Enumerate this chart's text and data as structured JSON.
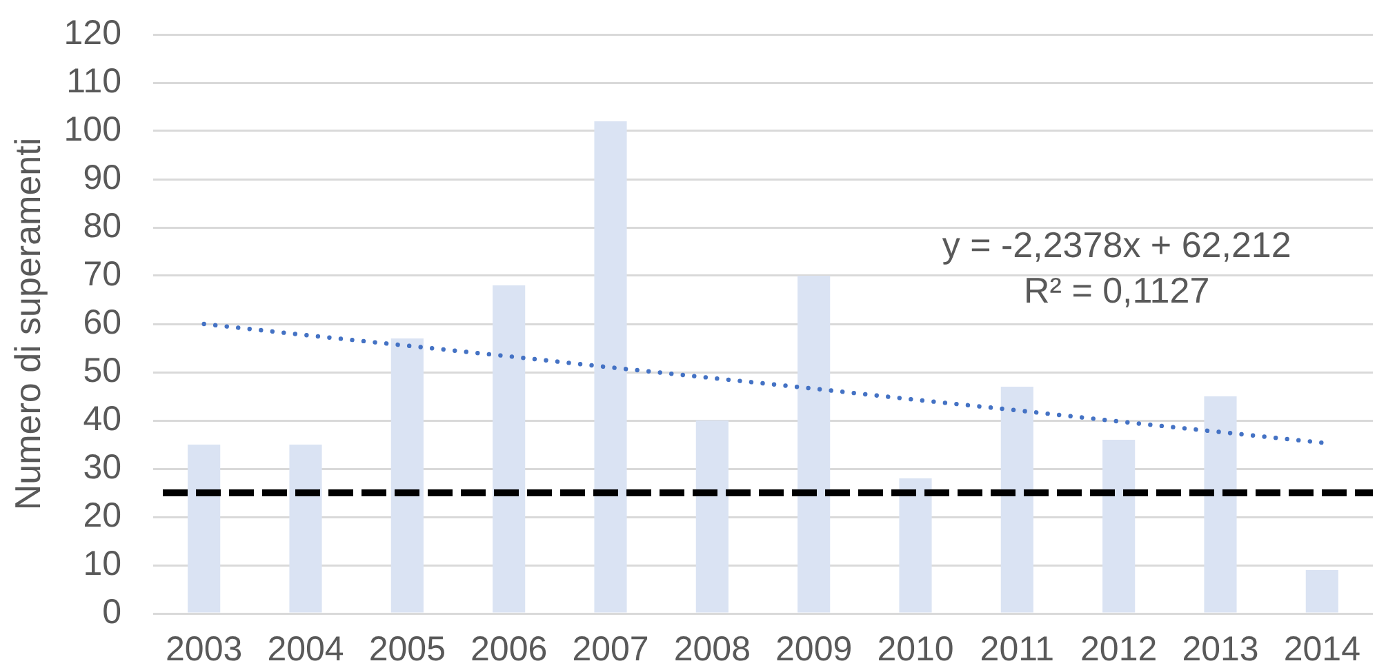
{
  "chart_data": {
    "type": "bar",
    "categories": [
      "2003",
      "2004",
      "2005",
      "2006",
      "2007",
      "2008",
      "2009",
      "2010",
      "2011",
      "2012",
      "2013",
      "2014"
    ],
    "ylabel": "Numero di superamenti",
    "ylim": [
      0,
      120
    ],
    "yticks": [
      0,
      10,
      20,
      30,
      40,
      50,
      60,
      70,
      80,
      90,
      100,
      110,
      120
    ],
    "grid": "y",
    "legend": false,
    "marker": "none",
    "series": [
      {
        "color": "#dae3f3",
        "values": [
          35,
          35,
          57,
          68,
          102,
          40,
          70,
          28,
          47,
          36,
          45,
          9
        ]
      },
      {
        "type": "line",
        "values": [
          60.0,
          57.7,
          55.5,
          53.3,
          51.0,
          48.8,
          46.6,
          44.3,
          42.1,
          39.8,
          37.6,
          35.4
        ],
        "color": "#4472c4",
        "line_style": "dotted"
      }
    ],
    "ref_lines": [
      {
        "axis": "y",
        "value": 25,
        "color": "#000000",
        "line_style": "dashed"
      }
    ],
    "annotations": [
      "y = -2,2378x + 62,212",
      "R² = 0,1127"
    ]
  }
}
